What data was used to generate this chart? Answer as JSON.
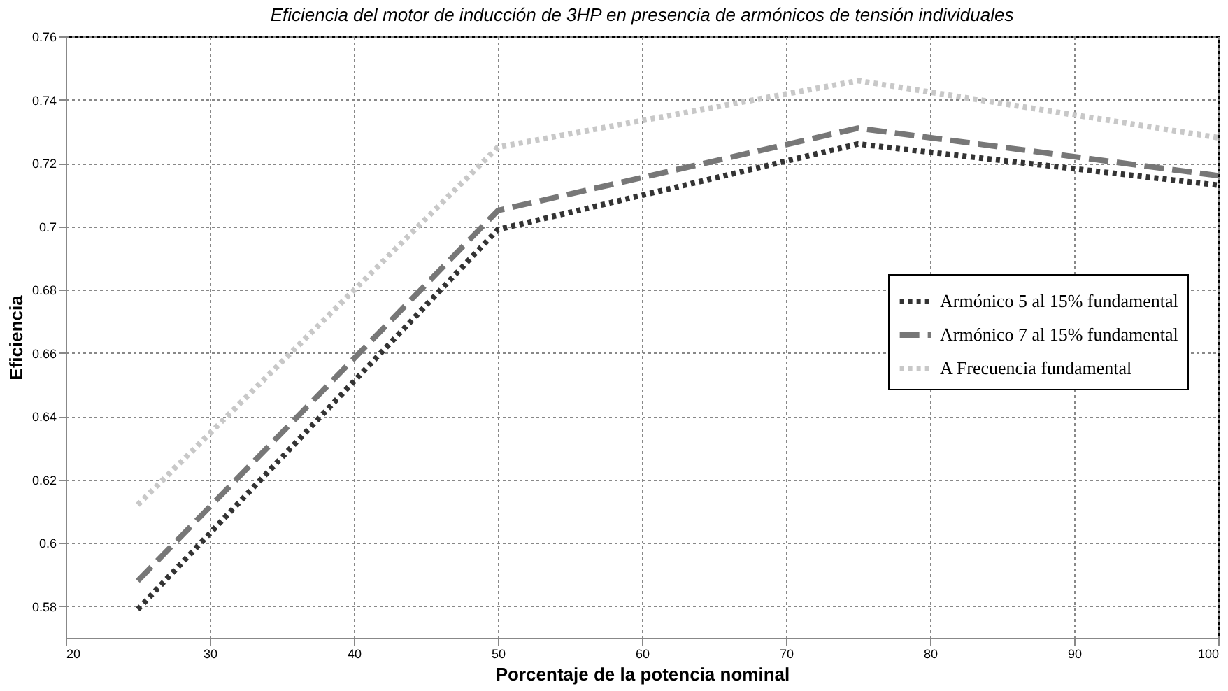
{
  "chart_data": {
    "type": "line",
    "title": "Eficiencia del motor de inducción de 3HP en presencia de armónicos de tensión individuales",
    "xlabel": "Porcentaje de la potencia nominal",
    "ylabel": "Eficiencia",
    "x": [
      25,
      50,
      75,
      100
    ],
    "series": [
      {
        "name": "Armónico 5 al 15% fundamental",
        "color": "#333333",
        "line_style": "dotted",
        "values": [
          0.579,
          0.699,
          0.726,
          0.713
        ]
      },
      {
        "name": "Armónico 7 al 15% fundamental",
        "color": "#777777",
        "line_style": "dashed",
        "values": [
          0.588,
          0.705,
          0.731,
          0.716
        ]
      },
      {
        "name": "A Frecuencia fundamental",
        "color": "#c8c8c8",
        "line_style": "dotted",
        "values": [
          0.612,
          0.725,
          0.746,
          0.728
        ]
      }
    ],
    "xlim": [
      20,
      100
    ],
    "xticks": [
      20,
      30,
      40,
      50,
      60,
      70,
      80,
      90,
      100
    ],
    "ylim": [
      0.57,
      0.76
    ],
    "yticks": [
      0.58,
      0.6,
      0.62,
      0.64,
      0.66,
      0.68,
      0.7,
      0.72,
      0.74,
      0.76
    ],
    "grid": true,
    "legend": "right",
    "marker": "none"
  }
}
